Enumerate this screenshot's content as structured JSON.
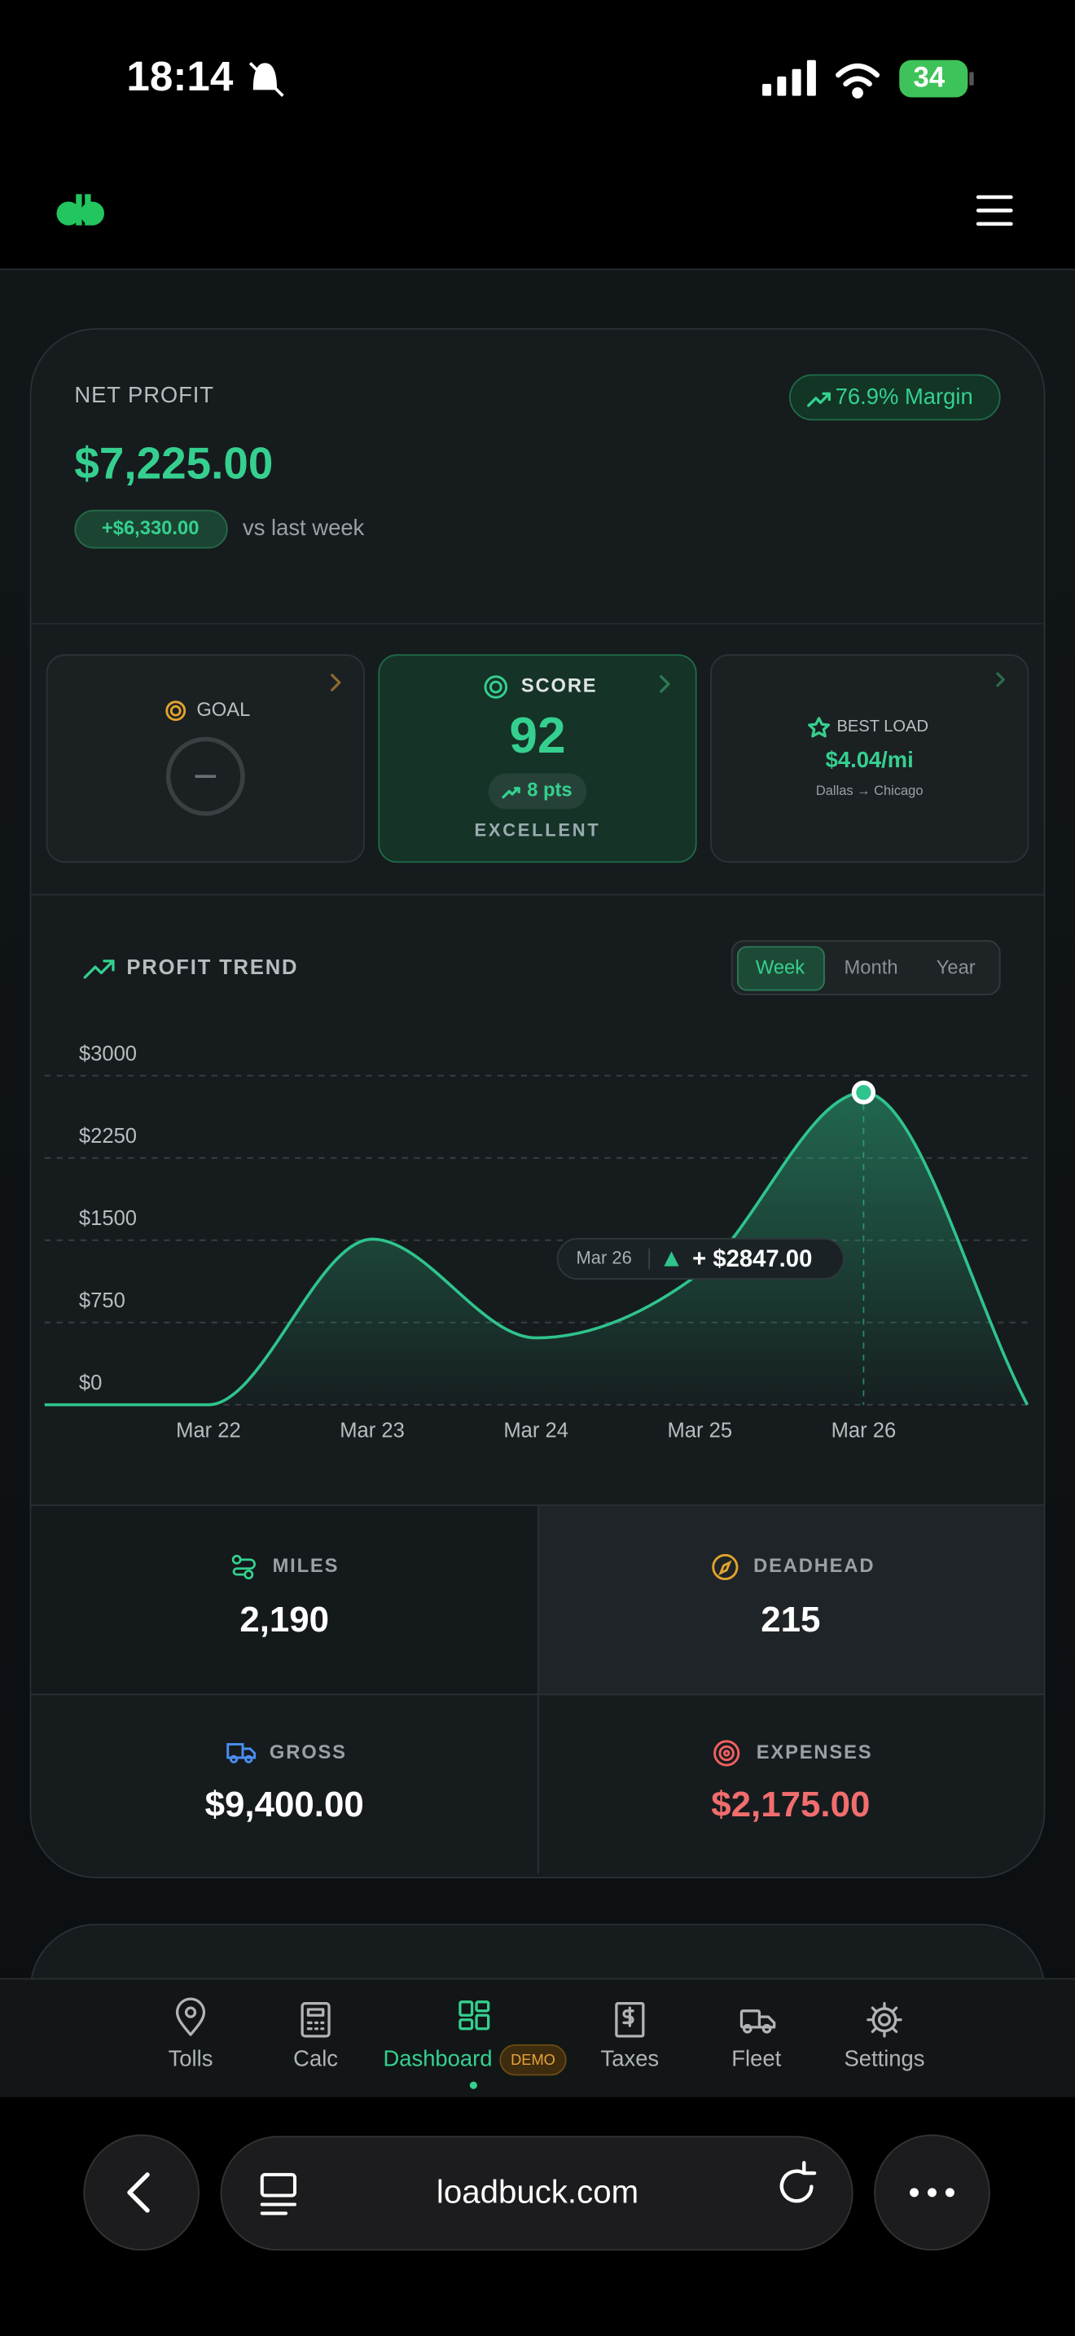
{
  "status_bar": {
    "time": "18:14",
    "battery": "34"
  },
  "net_profit": {
    "label": "NET PROFIT",
    "value": "$7,225.00",
    "change": "+$6,330.00",
    "comparison": "vs last week",
    "margin": "76.9% Margin"
  },
  "cards": {
    "goal": {
      "label": "GOAL"
    },
    "score": {
      "label": "SCORE",
      "value": "92",
      "change": "8 pts",
      "rating": "EXCELLENT"
    },
    "best_load": {
      "label": "BEST LOAD",
      "value": "$4.04/mi",
      "route": "Dallas → Chicago"
    }
  },
  "chart_data": {
    "type": "line",
    "title": "PROFIT TREND",
    "periods": [
      "Week",
      "Month",
      "Year"
    ],
    "active_period": "Week",
    "categories": [
      null,
      "Mar 22",
      "Mar 23",
      "Mar 24",
      "Mar 25",
      "Mar 26",
      null
    ],
    "values": [
      0,
      0,
      1510,
      610,
      1200,
      2847,
      0
    ],
    "value_labels": [
      null,
      null,
      null,
      null,
      null,
      "+ $2847.00",
      null
    ],
    "ylim": [
      0,
      3000
    ],
    "yticks": [
      {
        "value": 0,
        "label": "$0"
      },
      {
        "value": 750,
        "label": "$750"
      },
      {
        "value": 1500,
        "label": "$1500"
      },
      {
        "value": 2250,
        "label": "$2250"
      },
      {
        "value": 3000,
        "label": "$3000"
      }
    ],
    "color": "#2fc48d",
    "grid": true
  },
  "stats": [
    {
      "label": "MILES",
      "value": "2,190"
    },
    {
      "label": "DEADHEAD",
      "value": "215"
    },
    {
      "label": "GROSS",
      "value": "$9,400.00"
    },
    {
      "label": "EXPENSES",
      "value": "$2,175.00"
    }
  ],
  "nav": {
    "items": [
      "Tolls",
      "Calc",
      "Dashboard",
      "Taxes",
      "Fleet",
      "Settings"
    ],
    "active": "Dashboard",
    "badge": "DEMO"
  },
  "browser": {
    "url": "loadbuck.com"
  }
}
